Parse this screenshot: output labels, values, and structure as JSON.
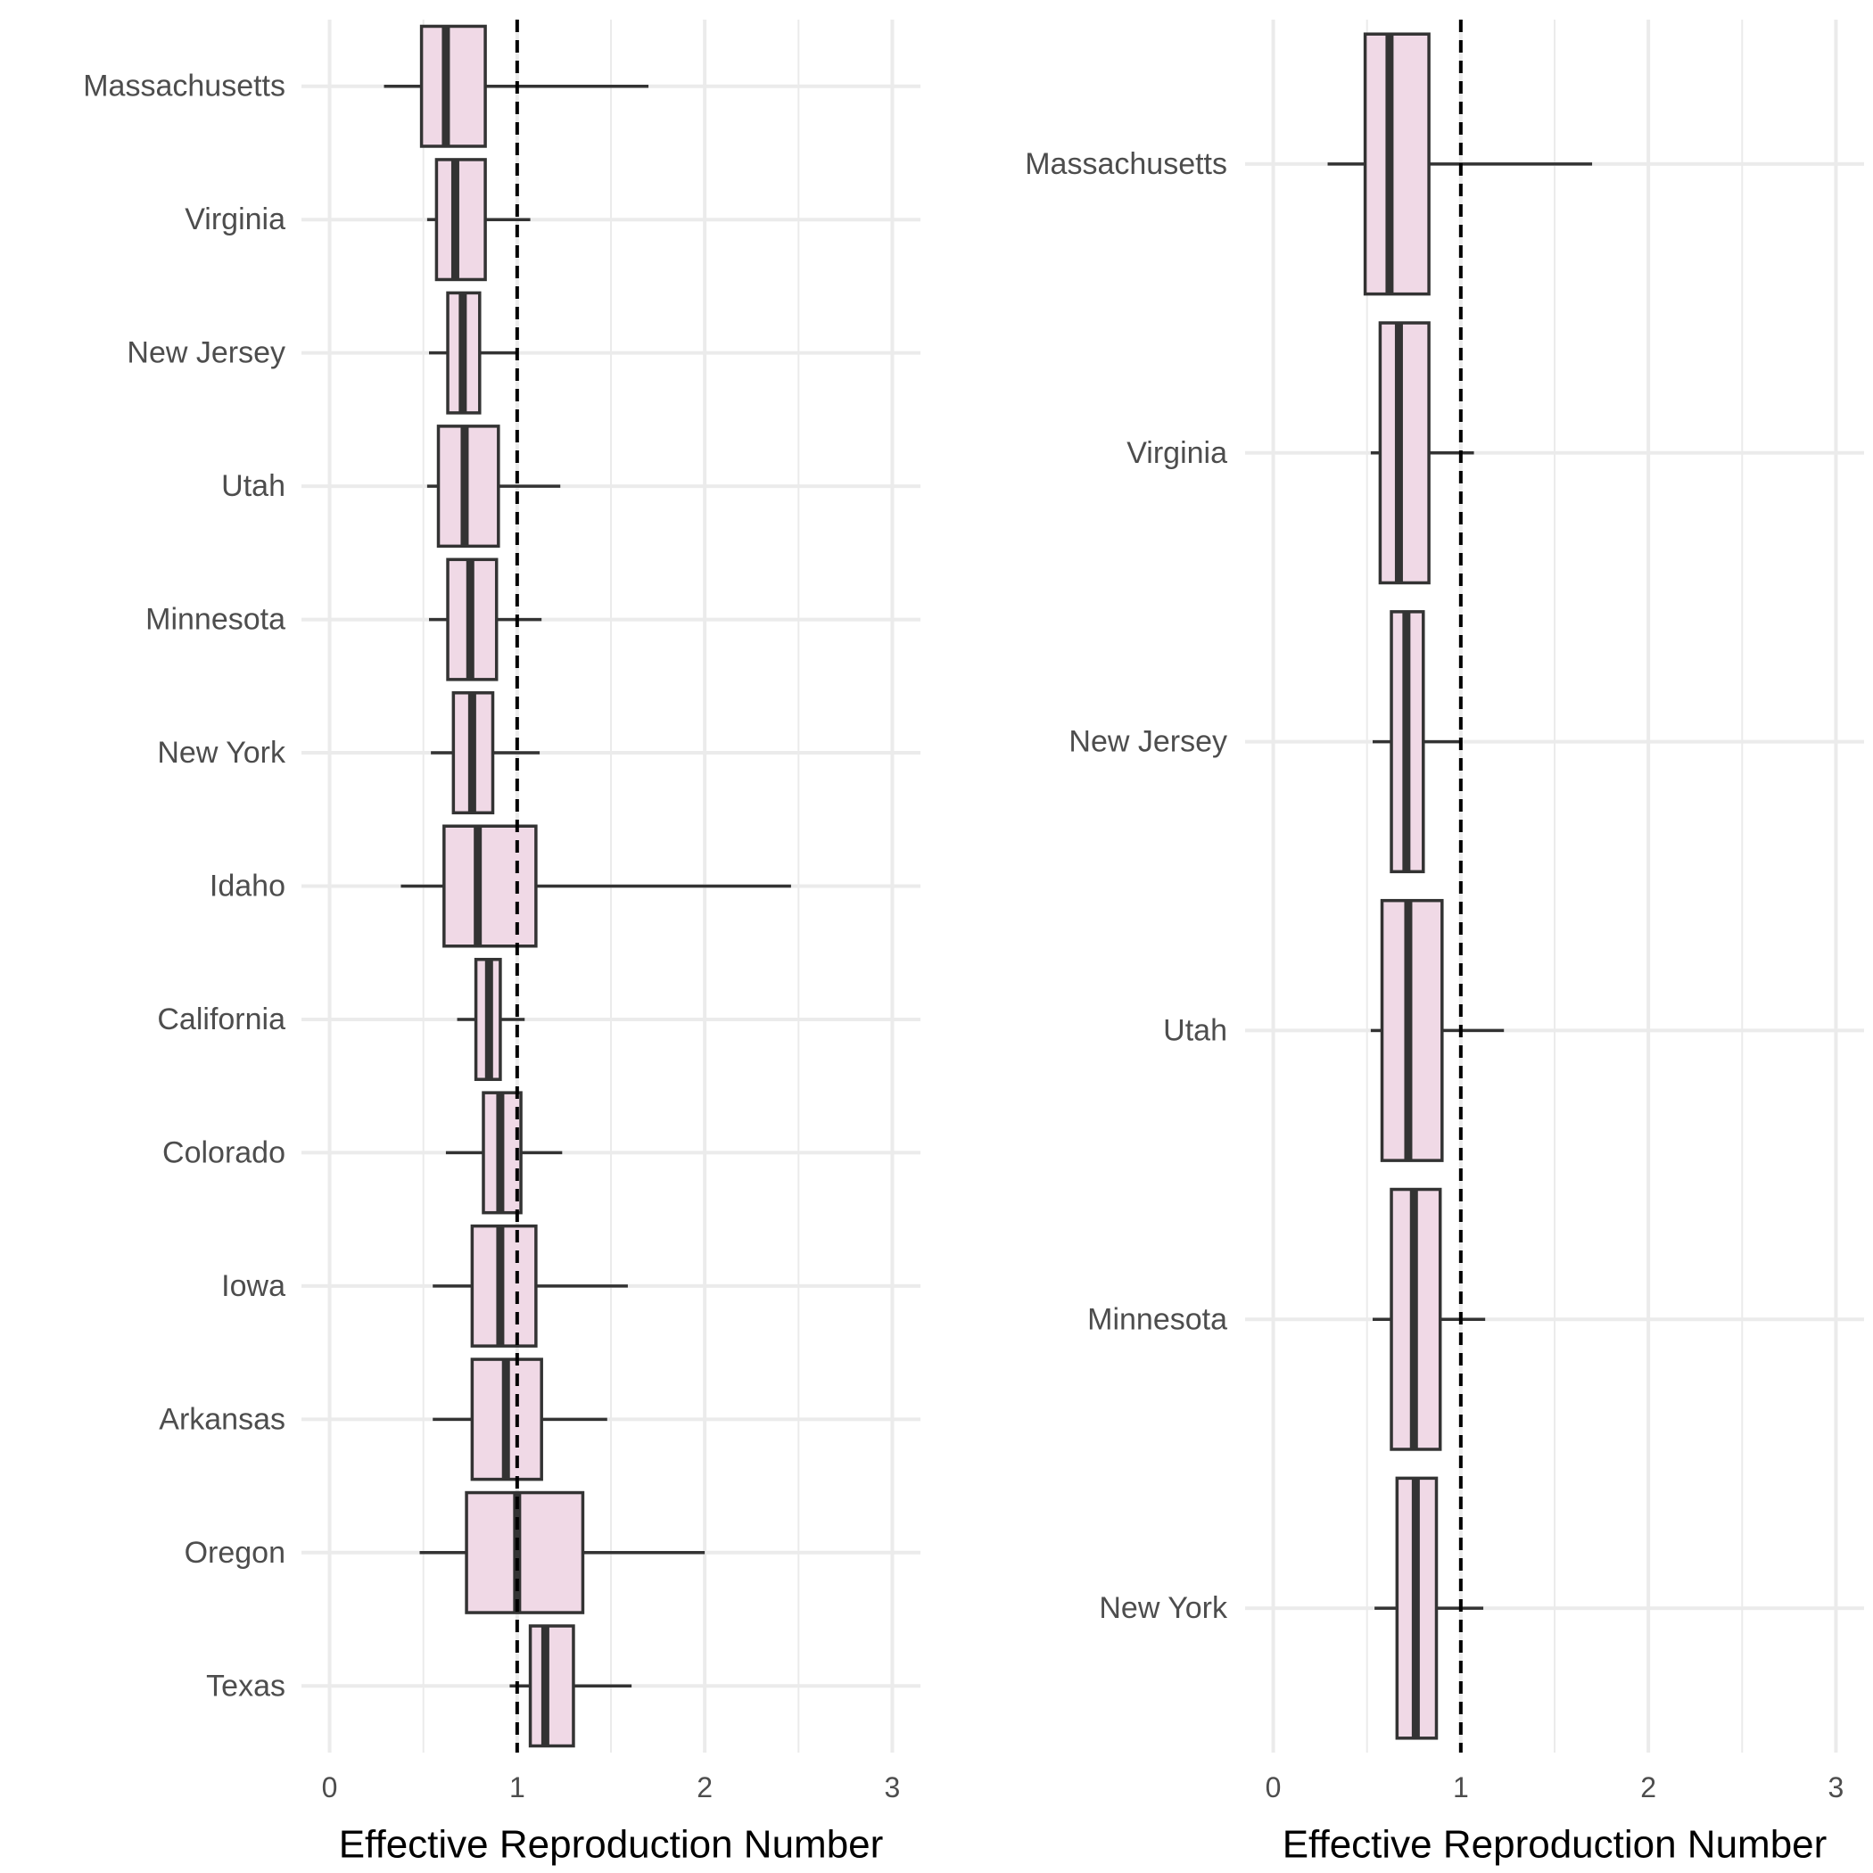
{
  "colors": {
    "box_fill": "#f0d9e6",
    "box_stroke": "#333333",
    "grid": "#ebebeb",
    "reference_line": "#000000"
  },
  "chart_data": [
    {
      "type": "boxplot",
      "orientation": "horizontal",
      "title": "",
      "xlabel": "Effective Reproduction Number",
      "ylabel": "",
      "xlim": [
        -0.15,
        3.15
      ],
      "xticks": [
        0,
        1,
        2,
        3
      ],
      "grid": true,
      "reference_line": {
        "x": 1,
        "style": "dashed"
      },
      "categories": [
        "Massachusetts",
        "Virginia",
        "New Jersey",
        "Utah",
        "Minnesota",
        "New York",
        "Idaho",
        "California",
        "Colorado",
        "Iowa",
        "Arkansas",
        "Oregon",
        "Texas"
      ],
      "boxes": [
        {
          "label": "Massachusetts",
          "min": 0.29,
          "q1": 0.49,
          "median": 0.62,
          "q3": 0.83,
          "max": 1.7
        },
        {
          "label": "Virginia",
          "min": 0.52,
          "q1": 0.57,
          "median": 0.67,
          "q3": 0.83,
          "max": 1.07
        },
        {
          "label": "New Jersey",
          "min": 0.53,
          "q1": 0.63,
          "median": 0.71,
          "q3": 0.8,
          "max": 1.0
        },
        {
          "label": "Utah",
          "min": 0.52,
          "q1": 0.58,
          "median": 0.72,
          "q3": 0.9,
          "max": 1.23
        },
        {
          "label": "Minnesota",
          "min": 0.53,
          "q1": 0.63,
          "median": 0.75,
          "q3": 0.89,
          "max": 1.13
        },
        {
          "label": "New York",
          "min": 0.54,
          "q1": 0.66,
          "median": 0.76,
          "q3": 0.87,
          "max": 1.12
        },
        {
          "label": "Idaho",
          "min": 0.38,
          "q1": 0.61,
          "median": 0.79,
          "q3": 1.1,
          "max": 2.46
        },
        {
          "label": "California",
          "min": 0.68,
          "q1": 0.78,
          "median": 0.85,
          "q3": 0.91,
          "max": 1.04
        },
        {
          "label": "Colorado",
          "min": 0.62,
          "q1": 0.82,
          "median": 0.91,
          "q3": 1.02,
          "max": 1.24
        },
        {
          "label": "Iowa",
          "min": 0.55,
          "q1": 0.76,
          "median": 0.91,
          "q3": 1.1,
          "max": 1.59
        },
        {
          "label": "Arkansas",
          "min": 0.55,
          "q1": 0.76,
          "median": 0.94,
          "q3": 1.13,
          "max": 1.48
        },
        {
          "label": "Oregon",
          "min": 0.48,
          "q1": 0.73,
          "median": 1.0,
          "q3": 1.35,
          "max": 2.0
        },
        {
          "label": "Texas",
          "min": 0.96,
          "q1": 1.07,
          "median": 1.15,
          "q3": 1.3,
          "max": 1.61
        }
      ]
    },
    {
      "type": "boxplot",
      "orientation": "horizontal",
      "title": "",
      "xlabel": "Effective Reproduction Number",
      "ylabel": "",
      "xlim": [
        -0.15,
        3.15
      ],
      "xticks": [
        0,
        1,
        2,
        3
      ],
      "grid": true,
      "reference_line": {
        "x": 1,
        "style": "dashed"
      },
      "categories": [
        "Massachusetts",
        "Virginia",
        "New Jersey",
        "Utah",
        "Minnesota",
        "New York"
      ],
      "boxes": [
        {
          "label": "Massachusetts",
          "min": 0.29,
          "q1": 0.49,
          "median": 0.62,
          "q3": 0.83,
          "max": 1.7
        },
        {
          "label": "Virginia",
          "min": 0.52,
          "q1": 0.57,
          "median": 0.67,
          "q3": 0.83,
          "max": 1.07
        },
        {
          "label": "New Jersey",
          "min": 0.53,
          "q1": 0.63,
          "median": 0.71,
          "q3": 0.8,
          "max": 1.0
        },
        {
          "label": "Utah",
          "min": 0.52,
          "q1": 0.58,
          "median": 0.72,
          "q3": 0.9,
          "max": 1.23
        },
        {
          "label": "Minnesota",
          "min": 0.53,
          "q1": 0.63,
          "median": 0.75,
          "q3": 0.89,
          "max": 1.13
        },
        {
          "label": "New York",
          "min": 0.54,
          "q1": 0.66,
          "median": 0.76,
          "q3": 0.87,
          "max": 1.12
        }
      ]
    }
  ]
}
